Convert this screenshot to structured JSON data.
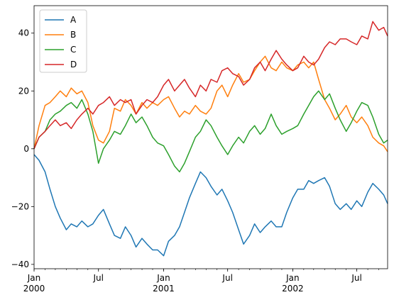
{
  "chart_data": {
    "type": "line",
    "title": "",
    "xlabel": "",
    "ylabel": "",
    "x_range": [
      "2000-01-01",
      "2002-09-26"
    ],
    "ylim": [
      -41.5,
      49.5
    ],
    "yticks": [
      -40,
      -20,
      0,
      20,
      40
    ],
    "ytick_labels": [
      "−40",
      "−20",
      "0",
      "20",
      "40"
    ],
    "xticks": [
      {
        "date": "2000-01-01",
        "label": "Jan",
        "sublabel": "2000"
      },
      {
        "date": "2000-07-01",
        "label": "Jul",
        "sublabel": ""
      },
      {
        "date": "2001-01-01",
        "label": "Jan",
        "sublabel": "2001"
      },
      {
        "date": "2001-07-01",
        "label": "Jul",
        "sublabel": ""
      },
      {
        "date": "2002-01-01",
        "label": "Jan",
        "sublabel": "2002"
      },
      {
        "date": "2002-07-01",
        "label": "Jul",
        "sublabel": ""
      }
    ],
    "grid": false,
    "legend": "top-left",
    "series": [
      {
        "name": "A",
        "color": "#1f77b4",
        "points": [
          [
            "2000-01-01",
            -2
          ],
          [
            "2000-01-15",
            -4
          ],
          [
            "2000-02-01",
            -8
          ],
          [
            "2000-02-15",
            -14
          ],
          [
            "2000-03-01",
            -20
          ],
          [
            "2000-03-15",
            -24
          ],
          [
            "2000-04-01",
            -28
          ],
          [
            "2000-04-15",
            -26
          ],
          [
            "2000-05-01",
            -27
          ],
          [
            "2000-05-15",
            -25
          ],
          [
            "2000-06-01",
            -27
          ],
          [
            "2000-06-15",
            -26
          ],
          [
            "2000-07-01",
            -23
          ],
          [
            "2000-07-15",
            -21
          ],
          [
            "2000-08-01",
            -26
          ],
          [
            "2000-08-15",
            -30
          ],
          [
            "2000-09-01",
            -31
          ],
          [
            "2000-09-15",
            -27
          ],
          [
            "2000-10-01",
            -30
          ],
          [
            "2000-10-15",
            -34
          ],
          [
            "2000-11-01",
            -31
          ],
          [
            "2000-11-15",
            -33
          ],
          [
            "2000-12-01",
            -35
          ],
          [
            "2000-12-15",
            -35
          ],
          [
            "2001-01-01",
            -37
          ],
          [
            "2001-01-15",
            -32
          ],
          [
            "2001-02-01",
            -30
          ],
          [
            "2001-02-15",
            -27
          ],
          [
            "2001-03-01",
            -22
          ],
          [
            "2001-03-15",
            -17
          ],
          [
            "2001-04-01",
            -12
          ],
          [
            "2001-04-15",
            -8
          ],
          [
            "2001-05-01",
            -10
          ],
          [
            "2001-05-15",
            -13
          ],
          [
            "2001-06-01",
            -16
          ],
          [
            "2001-06-15",
            -14
          ],
          [
            "2001-07-01",
            -18
          ],
          [
            "2001-07-15",
            -22
          ],
          [
            "2001-08-01",
            -28
          ],
          [
            "2001-08-15",
            -33
          ],
          [
            "2001-09-01",
            -30
          ],
          [
            "2001-09-15",
            -26
          ],
          [
            "2001-10-01",
            -29
          ],
          [
            "2001-10-15",
            -27
          ],
          [
            "2001-11-01",
            -25
          ],
          [
            "2001-11-15",
            -27
          ],
          [
            "2001-12-01",
            -27
          ],
          [
            "2001-12-15",
            -22
          ],
          [
            "2002-01-01",
            -17
          ],
          [
            "2002-01-15",
            -14
          ],
          [
            "2002-02-01",
            -14
          ],
          [
            "2002-02-15",
            -11
          ],
          [
            "2002-03-01",
            -12
          ],
          [
            "2002-03-15",
            -11
          ],
          [
            "2002-04-01",
            -10
          ],
          [
            "2002-04-15",
            -13
          ],
          [
            "2002-05-01",
            -19
          ],
          [
            "2002-05-15",
            -21
          ],
          [
            "2002-06-01",
            -19
          ],
          [
            "2002-06-15",
            -21
          ],
          [
            "2002-07-01",
            -18
          ],
          [
            "2002-07-15",
            -20
          ],
          [
            "2002-08-01",
            -15
          ],
          [
            "2002-08-15",
            -12
          ],
          [
            "2002-09-01",
            -14
          ],
          [
            "2002-09-15",
            -16
          ],
          [
            "2002-09-26",
            -19
          ]
        ]
      },
      {
        "name": "B",
        "color": "#ff7f0e",
        "points": [
          [
            "2000-01-01",
            0
          ],
          [
            "2000-01-15",
            8
          ],
          [
            "2000-02-01",
            15
          ],
          [
            "2000-02-15",
            16
          ],
          [
            "2000-03-01",
            18
          ],
          [
            "2000-03-15",
            20
          ],
          [
            "2000-04-01",
            18
          ],
          [
            "2000-04-15",
            21
          ],
          [
            "2000-05-01",
            19
          ],
          [
            "2000-05-15",
            20
          ],
          [
            "2000-06-01",
            16
          ],
          [
            "2000-06-15",
            8
          ],
          [
            "2000-07-01",
            3
          ],
          [
            "2000-07-15",
            2
          ],
          [
            "2000-08-01",
            6
          ],
          [
            "2000-08-15",
            14
          ],
          [
            "2000-09-01",
            13
          ],
          [
            "2000-09-15",
            17
          ],
          [
            "2000-10-01",
            15
          ],
          [
            "2000-10-15",
            12
          ],
          [
            "2000-11-01",
            16
          ],
          [
            "2000-11-15",
            14
          ],
          [
            "2000-12-01",
            16
          ],
          [
            "2000-12-15",
            15
          ],
          [
            "2001-01-01",
            17
          ],
          [
            "2001-01-15",
            18
          ],
          [
            "2001-02-01",
            14
          ],
          [
            "2001-02-15",
            11
          ],
          [
            "2001-03-01",
            13
          ],
          [
            "2001-03-15",
            12
          ],
          [
            "2001-04-01",
            15
          ],
          [
            "2001-04-15",
            13
          ],
          [
            "2001-05-01",
            12
          ],
          [
            "2001-05-15",
            14
          ],
          [
            "2001-06-01",
            20
          ],
          [
            "2001-06-15",
            22
          ],
          [
            "2001-07-01",
            18
          ],
          [
            "2001-07-15",
            22
          ],
          [
            "2001-08-01",
            26
          ],
          [
            "2001-08-15",
            23
          ],
          [
            "2001-09-01",
            24
          ],
          [
            "2001-09-15",
            27
          ],
          [
            "2001-10-01",
            30
          ],
          [
            "2001-10-15",
            32
          ],
          [
            "2001-11-01",
            28
          ],
          [
            "2001-11-15",
            27
          ],
          [
            "2001-12-01",
            30
          ],
          [
            "2001-12-15",
            28
          ],
          [
            "2002-01-01",
            27
          ],
          [
            "2002-01-15",
            29
          ],
          [
            "2002-02-01",
            30
          ],
          [
            "2002-02-15",
            28
          ],
          [
            "2002-03-01",
            30
          ],
          [
            "2002-03-15",
            24
          ],
          [
            "2002-04-01",
            17
          ],
          [
            "2002-04-15",
            14
          ],
          [
            "2002-05-01",
            10
          ],
          [
            "2002-05-15",
            12
          ],
          [
            "2002-06-01",
            15
          ],
          [
            "2002-06-15",
            11
          ],
          [
            "2002-07-01",
            9
          ],
          [
            "2002-07-15",
            11
          ],
          [
            "2002-08-01",
            8
          ],
          [
            "2002-08-15",
            4
          ],
          [
            "2002-09-01",
            2
          ],
          [
            "2002-09-15",
            1
          ],
          [
            "2002-09-26",
            -1
          ]
        ]
      },
      {
        "name": "C",
        "color": "#2ca02c",
        "points": [
          [
            "2000-01-01",
            0
          ],
          [
            "2000-01-15",
            4
          ],
          [
            "2000-02-01",
            6
          ],
          [
            "2000-02-15",
            10
          ],
          [
            "2000-03-01",
            12
          ],
          [
            "2000-03-15",
            13
          ],
          [
            "2000-04-01",
            15
          ],
          [
            "2000-04-15",
            16
          ],
          [
            "2000-05-01",
            14
          ],
          [
            "2000-05-15",
            17
          ],
          [
            "2000-06-01",
            12
          ],
          [
            "2000-06-15",
            6
          ],
          [
            "2000-07-01",
            -5
          ],
          [
            "2000-07-15",
            0
          ],
          [
            "2000-08-01",
            3
          ],
          [
            "2000-08-15",
            6
          ],
          [
            "2000-09-01",
            5
          ],
          [
            "2000-09-15",
            8
          ],
          [
            "2000-10-01",
            12
          ],
          [
            "2000-10-15",
            9
          ],
          [
            "2000-11-01",
            11
          ],
          [
            "2000-11-15",
            8
          ],
          [
            "2000-12-01",
            4
          ],
          [
            "2000-12-15",
            2
          ],
          [
            "2001-01-01",
            1
          ],
          [
            "2001-01-15",
            -2
          ],
          [
            "2001-02-01",
            -6
          ],
          [
            "2001-02-15",
            -8
          ],
          [
            "2001-03-01",
            -5
          ],
          [
            "2001-03-15",
            -1
          ],
          [
            "2001-04-01",
            4
          ],
          [
            "2001-04-15",
            6
          ],
          [
            "2001-05-01",
            10
          ],
          [
            "2001-05-15",
            8
          ],
          [
            "2001-06-01",
            4
          ],
          [
            "2001-06-15",
            1
          ],
          [
            "2001-07-01",
            -2
          ],
          [
            "2001-07-15",
            1
          ],
          [
            "2001-08-01",
            4
          ],
          [
            "2001-08-15",
            2
          ],
          [
            "2001-09-01",
            6
          ],
          [
            "2001-09-15",
            8
          ],
          [
            "2001-10-01",
            5
          ],
          [
            "2001-10-15",
            7
          ],
          [
            "2001-11-01",
            12
          ],
          [
            "2001-11-15",
            8
          ],
          [
            "2001-12-01",
            5
          ],
          [
            "2001-12-15",
            6
          ],
          [
            "2002-01-01",
            7
          ],
          [
            "2002-01-15",
            8
          ],
          [
            "2002-02-01",
            12
          ],
          [
            "2002-02-15",
            15
          ],
          [
            "2002-03-01",
            18
          ],
          [
            "2002-03-15",
            20
          ],
          [
            "2002-04-01",
            17
          ],
          [
            "2002-04-15",
            19
          ],
          [
            "2002-05-01",
            14
          ],
          [
            "2002-05-15",
            10
          ],
          [
            "2002-06-01",
            6
          ],
          [
            "2002-06-15",
            9
          ],
          [
            "2002-07-01",
            13
          ],
          [
            "2002-07-15",
            16
          ],
          [
            "2002-08-01",
            15
          ],
          [
            "2002-08-15",
            11
          ],
          [
            "2002-09-01",
            5
          ],
          [
            "2002-09-15",
            2
          ],
          [
            "2002-09-26",
            3
          ]
        ]
      },
      {
        "name": "D",
        "color": "#d62728",
        "points": [
          [
            "2000-01-01",
            0
          ],
          [
            "2000-01-15",
            4
          ],
          [
            "2000-02-01",
            6
          ],
          [
            "2000-02-15",
            8
          ],
          [
            "2000-03-01",
            10
          ],
          [
            "2000-03-15",
            8
          ],
          [
            "2000-04-01",
            9
          ],
          [
            "2000-04-15",
            7
          ],
          [
            "2000-05-01",
            10
          ],
          [
            "2000-05-15",
            12
          ],
          [
            "2000-06-01",
            14
          ],
          [
            "2000-06-15",
            12
          ],
          [
            "2000-07-01",
            15
          ],
          [
            "2000-07-15",
            16
          ],
          [
            "2000-08-01",
            18
          ],
          [
            "2000-08-15",
            15
          ],
          [
            "2000-09-01",
            17
          ],
          [
            "2000-09-15",
            16
          ],
          [
            "2000-10-01",
            17
          ],
          [
            "2000-10-15",
            12
          ],
          [
            "2000-11-01",
            15
          ],
          [
            "2000-11-15",
            17
          ],
          [
            "2000-12-01",
            16
          ],
          [
            "2000-12-15",
            18
          ],
          [
            "2001-01-01",
            22
          ],
          [
            "2001-01-15",
            24
          ],
          [
            "2001-02-01",
            20
          ],
          [
            "2001-02-15",
            22
          ],
          [
            "2001-03-01",
            24
          ],
          [
            "2001-03-15",
            21
          ],
          [
            "2001-04-01",
            18
          ],
          [
            "2001-04-15",
            22
          ],
          [
            "2001-05-01",
            20
          ],
          [
            "2001-05-15",
            24
          ],
          [
            "2001-06-01",
            23
          ],
          [
            "2001-06-15",
            27
          ],
          [
            "2001-07-01",
            28
          ],
          [
            "2001-07-15",
            26
          ],
          [
            "2001-08-01",
            25
          ],
          [
            "2001-08-15",
            22
          ],
          [
            "2001-09-01",
            24
          ],
          [
            "2001-09-15",
            28
          ],
          [
            "2001-10-01",
            30
          ],
          [
            "2001-10-15",
            27
          ],
          [
            "2001-11-01",
            31
          ],
          [
            "2001-11-15",
            34
          ],
          [
            "2001-12-01",
            31
          ],
          [
            "2001-12-15",
            29
          ],
          [
            "2002-01-01",
            27
          ],
          [
            "2002-01-15",
            28
          ],
          [
            "2002-02-01",
            32
          ],
          [
            "2002-02-15",
            30
          ],
          [
            "2002-03-01",
            29
          ],
          [
            "2002-03-15",
            31
          ],
          [
            "2002-04-01",
            35
          ],
          [
            "2002-04-15",
            37
          ],
          [
            "2002-05-01",
            36
          ],
          [
            "2002-05-15",
            38
          ],
          [
            "2002-06-01",
            38
          ],
          [
            "2002-06-15",
            37
          ],
          [
            "2002-07-01",
            36
          ],
          [
            "2002-07-15",
            39
          ],
          [
            "2002-08-01",
            38
          ],
          [
            "2002-08-15",
            44
          ],
          [
            "2002-09-01",
            41
          ],
          [
            "2002-09-15",
            42
          ],
          [
            "2002-09-26",
            39
          ]
        ]
      }
    ]
  }
}
